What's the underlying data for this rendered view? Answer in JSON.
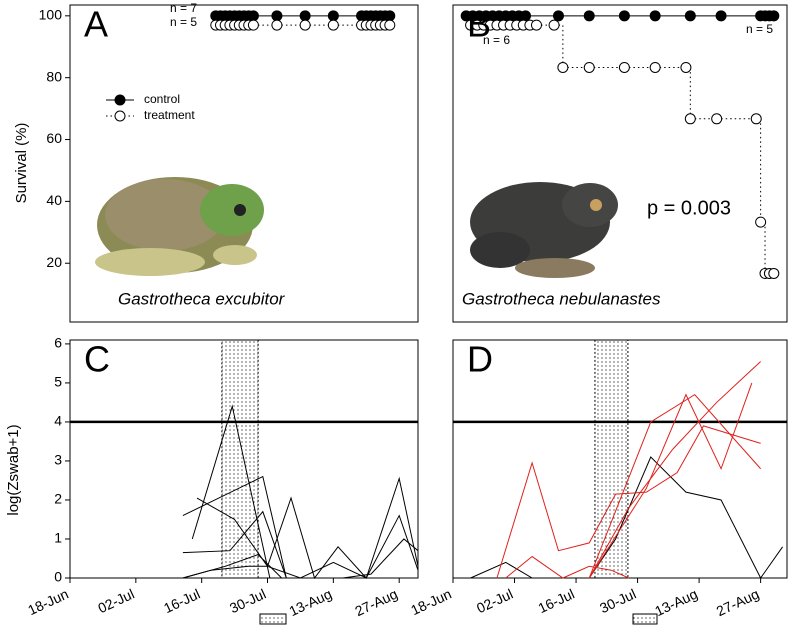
{
  "chart_data": [
    {
      "type": "line",
      "panel_label": "A",
      "ylabel": "Survival (%)",
      "xlim": [
        0,
        74
      ],
      "ylim": [
        1,
        103.5
      ],
      "yticks": [
        20,
        40,
        60,
        80,
        100
      ],
      "legend": "upper left",
      "annotations": [
        "n = 7",
        "n = 5"
      ],
      "species": "Gastrotheca excubitor",
      "series": [
        {
          "name": "control",
          "color": "#000000",
          "marker": "filled",
          "linestyle": "solid",
          "x": [
            31,
            32,
            33,
            34,
            35,
            36,
            37,
            38,
            39,
            44,
            50,
            56,
            62,
            63,
            64,
            65,
            66,
            67,
            68
          ],
          "values": [
            100,
            100,
            100,
            100,
            100,
            100,
            100,
            100,
            100,
            100,
            100,
            100,
            100,
            100,
            100,
            100,
            100,
            100,
            100
          ]
        },
        {
          "name": "treatment",
          "color": "#000000",
          "marker": "open",
          "linestyle": "dotted",
          "x": [
            31,
            32,
            33,
            34,
            35,
            36,
            37,
            38,
            39,
            44,
            50,
            56,
            62,
            63,
            64,
            65,
            66,
            67,
            68
          ],
          "values": [
            97,
            97,
            97,
            97,
            97,
            97,
            97,
            97,
            97,
            97,
            97,
            97,
            97,
            97,
            97,
            97,
            97,
            97,
            97
          ]
        }
      ]
    },
    {
      "type": "line",
      "panel_label": "B",
      "xlim": [
        0,
        76
      ],
      "ylim": [
        1,
        103.5
      ],
      "annotations": [
        "n = 6",
        "n = 5",
        "p = 0.003"
      ],
      "species": "Gastrotheca nebulanastes",
      "series": [
        {
          "color": "#000000",
          "marker": "filled",
          "linestyle": "solid",
          "x": [
            3,
            4.5,
            6,
            7.5,
            9,
            10.5,
            12,
            13.5,
            15,
            16.5,
            24,
            31,
            39,
            46,
            54,
            61,
            70,
            71,
            72,
            73
          ],
          "values": [
            100,
            100,
            100,
            100,
            100,
            100,
            100,
            100,
            100,
            100,
            100,
            100,
            100,
            100,
            100,
            100,
            100,
            100,
            100,
            100
          ]
        },
        {
          "color": "#000000",
          "marker": "open",
          "linestyle": "dotted",
          "step": true,
          "x": [
            4,
            5.5,
            7,
            8.5,
            10,
            11.5,
            13,
            14.5,
            16,
            17.5,
            19,
            23,
            25,
            31,
            39,
            46,
            53,
            54,
            60,
            69,
            70,
            71,
            72,
            73
          ],
          "values": [
            97,
            97,
            97,
            97,
            97,
            97,
            97,
            97,
            97,
            97,
            97,
            97,
            83.3,
            83.3,
            83.3,
            83.3,
            83.3,
            66.7,
            66.7,
            66.7,
            33.3,
            16.7,
            16.7,
            16.7
          ]
        }
      ]
    },
    {
      "type": "line",
      "panel_label": "C",
      "ylabel": "log(Zswab+1)",
      "xlim": [
        0,
        74
      ],
      "ylim": [
        0,
        6.1
      ],
      "yticks": [
        0,
        1,
        2,
        3,
        4,
        5,
        6
      ],
      "xticks": [
        {
          "value": 0,
          "label": "18-Jun"
        },
        {
          "value": 14,
          "label": "02-Jul"
        },
        {
          "value": 28,
          "label": "16-Jul"
        },
        {
          "value": 42,
          "label": "30-Jul"
        },
        {
          "value": 56,
          "label": "13-Aug"
        },
        {
          "value": 70,
          "label": "27-Aug"
        }
      ],
      "hline": 4,
      "shade": [
        32.3,
        40
      ],
      "series": [
        {
          "color": "#000000",
          "x": [
            24,
            41,
            46
          ],
          "values": [
            1.6,
            2.6,
            0
          ]
        },
        {
          "color": "#000000",
          "x": [
            24,
            34,
            41,
            46
          ],
          "values": [
            0.65,
            0.7,
            1.7,
            0
          ]
        },
        {
          "color": "#000000",
          "x": [
            26,
            34.5,
            42.5,
            48
          ],
          "values": [
            1.0,
            4.4,
            0,
            0
          ]
        },
        {
          "color": "#000000",
          "x": [
            24,
            30,
            38,
            42,
            47,
            52,
            57,
            63,
            70,
            74
          ],
          "values": [
            0,
            0.2,
            0.3,
            0.3,
            2.05,
            0,
            0.8,
            0,
            2.55,
            0.3
          ]
        },
        {
          "color": "#000000",
          "x": [
            27,
            35,
            42,
            49,
            56,
            63,
            70,
            74
          ],
          "values": [
            2.05,
            1.5,
            0.3,
            0,
            0.4,
            0,
            1.6,
            0.2
          ]
        },
        {
          "color": "#000000",
          "x": [
            24,
            33,
            40,
            45,
            58,
            64,
            71,
            74
          ],
          "values": [
            0,
            0.3,
            0.6,
            0,
            0,
            0.1,
            1.0,
            0.7
          ]
        }
      ]
    },
    {
      "type": "line",
      "panel_label": "D",
      "xlim": [
        0,
        76
      ],
      "ylim": [
        0,
        6.1
      ],
      "xticks": [
        {
          "value": 0,
          "label": "18-Jun"
        },
        {
          "value": 14,
          "label": "02-Jul"
        },
        {
          "value": 28,
          "label": "16-Jul"
        },
        {
          "value": 42,
          "label": "30-Jul"
        },
        {
          "value": 56,
          "label": "13-Aug"
        },
        {
          "value": 70,
          "label": "27-Aug"
        }
      ],
      "hline": 4,
      "shade": [
        32.3,
        39.8
      ],
      "series": [
        {
          "color": "#000000",
          "x": [
            4,
            12,
            18,
            31,
            37,
            45,
            53,
            61,
            70,
            75
          ],
          "values": [
            0,
            0.4,
            0,
            0,
            1.0,
            3.1,
            2.2,
            2.0,
            0,
            0.8
          ]
        },
        {
          "color": "#e0201b",
          "x": [
            10,
            18,
            24,
            31,
            37,
            44,
            51,
            57,
            70
          ],
          "values": [
            0,
            2.95,
            0.7,
            0.9,
            2.15,
            2.2,
            2.7,
            3.9,
            3.45
          ]
        },
        {
          "color": "#e0201b",
          "x": [
            31,
            45,
            55,
            70
          ],
          "values": [
            0,
            4.0,
            4.7,
            2.8
          ]
        },
        {
          "color": "#e0201b",
          "x": [
            31,
            40,
            50,
            60,
            70
          ],
          "values": [
            0,
            1.8,
            3.3,
            4.5,
            5.55
          ]
        },
        {
          "color": "#e0201b",
          "x": [
            31,
            44,
            53,
            61,
            68
          ],
          "values": [
            0,
            2.3,
            4.7,
            2.8,
            5.0
          ]
        },
        {
          "color": "#e0201b",
          "x": [
            12,
            18,
            25,
            31,
            36,
            40
          ],
          "values": [
            0,
            0.55,
            0,
            0.3,
            0.2,
            0
          ]
        }
      ]
    }
  ]
}
